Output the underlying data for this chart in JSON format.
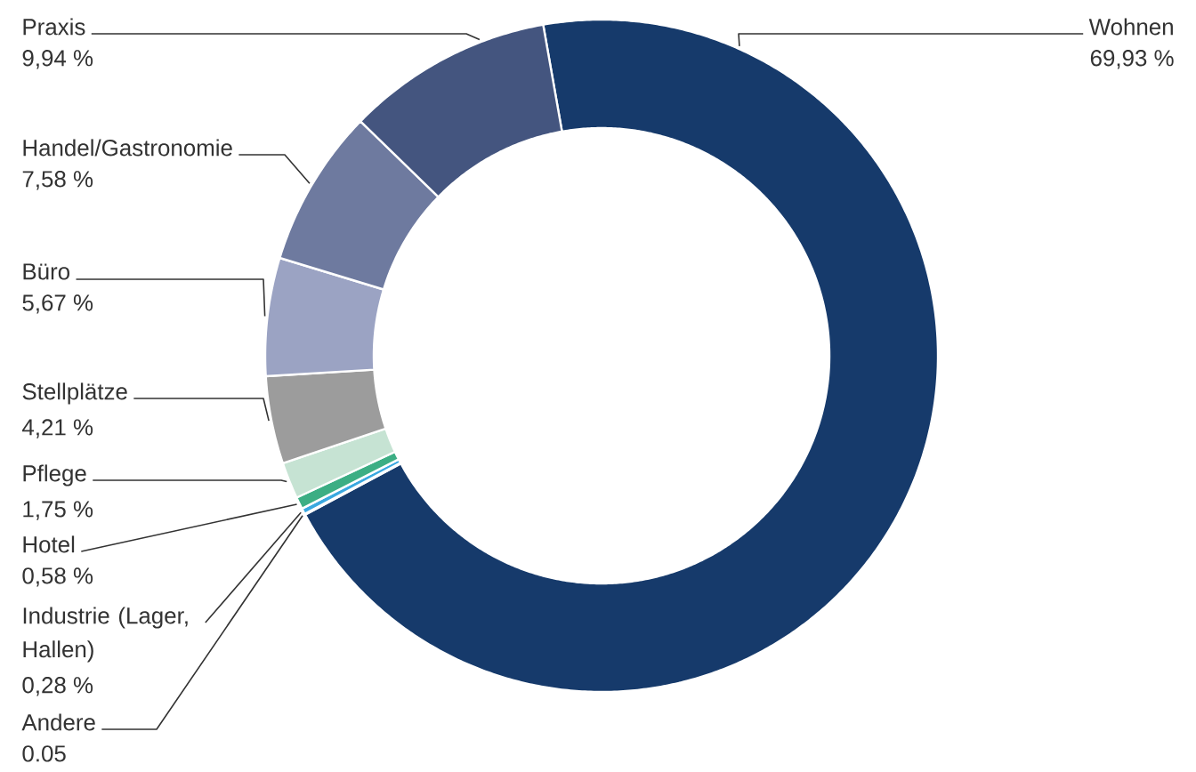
{
  "chart_data": {
    "type": "donut",
    "categories": [
      "Wohnen",
      "Andere",
      "Industrie (Lager, Hallen)",
      "Hotel",
      "Pflege",
      "Stellplätze",
      "Büro",
      "Handel/Gastronomie",
      "Praxis"
    ],
    "values": [
      69.93,
      0.05,
      0.28,
      0.58,
      1.75,
      4.21,
      5.67,
      7.58,
      9.94
    ],
    "value_labels": [
      "69,93 %",
      "0.05",
      "0,28 %",
      "0,58 %",
      "1,75 %",
      "4,21 %",
      "5,67 %",
      "7,58 %",
      "9,94 %"
    ],
    "colors": [
      "#163a6b",
      "#222222",
      "#3aa8e0",
      "#3cae84",
      "#c6e3d3",
      "#9c9c9c",
      "#9ba3c3",
      "#6e7a9f",
      "#44557f"
    ]
  }
}
